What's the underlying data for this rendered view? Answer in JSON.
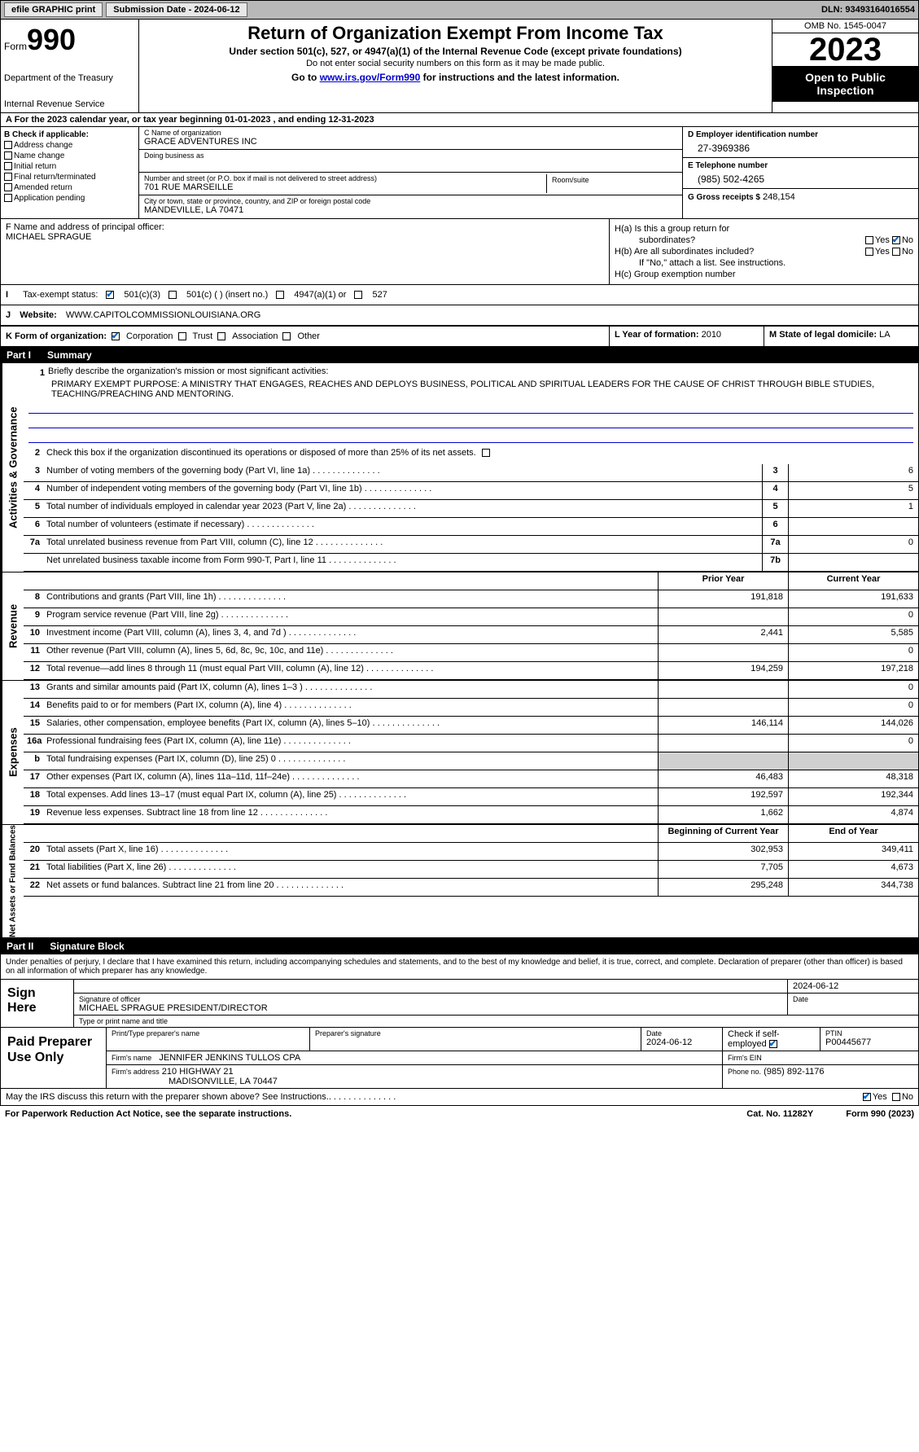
{
  "topbar": {
    "efile": "efile GRAPHIC print",
    "submission": "Submission Date - 2024-06-12",
    "dln": "DLN: 93493164016554"
  },
  "header": {
    "form": "Form",
    "num": "990",
    "dept": "Department of the Treasury",
    "irs": "Internal Revenue Service",
    "title": "Return of Organization Exempt From Income Tax",
    "subtitle": "Under section 501(c), 527, or 4947(a)(1) of the Internal Revenue Code (except private foundations)",
    "note1": "Do not enter social security numbers on this form as it may be made public.",
    "goto_prefix": "Go to ",
    "goto_link": "www.irs.gov/Form990",
    "goto_suffix": " for instructions and the latest information.",
    "omb": "OMB No. 1545-0047",
    "year": "2023",
    "inspect": "Open to Public Inspection"
  },
  "period": "A  For the 2023 calendar year, or tax year beginning 01-01-2023    , and ending 12-31-2023",
  "box_b": {
    "hdr": "B Check if applicable:",
    "items": [
      "Address change",
      "Name change",
      "Initial return",
      "Final return/terminated",
      "Amended return",
      "Application pending"
    ]
  },
  "box_c": {
    "name_lbl": "C Name of organization",
    "name": "GRACE ADVENTURES INC",
    "dba_lbl": "Doing business as",
    "street_lbl": "Number and street (or P.O. box if mail is not delivered to street address)",
    "street": "701 RUE MARSEILLE",
    "room_lbl": "Room/suite",
    "city_lbl": "City or town, state or province, country, and ZIP or foreign postal code",
    "city": "MANDEVILLE, LA  70471"
  },
  "box_d": {
    "ein_lbl": "D Employer identification number",
    "ein": "27-3969386",
    "tel_lbl": "E Telephone number",
    "tel": "(985) 502-4265",
    "gross_lbl": "G Gross receipts $",
    "gross": "248,154"
  },
  "box_f": {
    "lbl": "F  Name and address of principal officer:",
    "name": "MICHAEL SPRAGUE"
  },
  "box_h": {
    "a": "H(a)  Is this a group return for",
    "a2": "subordinates?",
    "b": "H(b)  Are all subordinates included?",
    "b2": "If \"No,\" attach a list. See instructions.",
    "c": "H(c)  Group exemption number"
  },
  "row_i": {
    "lbl": "Tax-exempt status:",
    "opts": [
      "501(c)(3)",
      "501(c) (  ) (insert no.)",
      "4947(a)(1) or",
      "527"
    ]
  },
  "row_j": {
    "lbl": "Website:",
    "val": "WWW.CAPITOLCOMMISSIONLOUISIANA.ORG"
  },
  "row_k": {
    "lbl": "K Form of organization:",
    "opts": [
      "Corporation",
      "Trust",
      "Association",
      "Other"
    ]
  },
  "row_l": {
    "lbl": "L Year of formation:",
    "val": "2010"
  },
  "row_m": {
    "lbl": "M State of legal domicile:",
    "val": "LA"
  },
  "part1": {
    "num": "Part I",
    "title": "Summary"
  },
  "summary": {
    "line1_lbl": "Briefly describe the organization's mission or most significant activities:",
    "line1_val": "PRIMARY EXEMPT PURPOSE: A MINISTRY THAT ENGAGES, REACHES AND DEPLOYS BUSINESS, POLITICAL AND SPIRITUAL LEADERS FOR THE CAUSE OF CHRIST THROUGH BIBLE STUDIES, TEACHING/PREACHING AND MENTORING.",
    "line2": "Check this box       if the organization discontinued its operations or disposed of more than 25% of its net assets.",
    "lines": [
      {
        "n": "3",
        "d": "Number of voting members of the governing body (Part VI, line 1a)",
        "c": "3",
        "v": "6"
      },
      {
        "n": "4",
        "d": "Number of independent voting members of the governing body (Part VI, line 1b)",
        "c": "4",
        "v": "5"
      },
      {
        "n": "5",
        "d": "Total number of individuals employed in calendar year 2023 (Part V, line 2a)",
        "c": "5",
        "v": "1"
      },
      {
        "n": "6",
        "d": "Total number of volunteers (estimate if necessary)",
        "c": "6",
        "v": ""
      },
      {
        "n": "7a",
        "d": "Total unrelated business revenue from Part VIII, column (C), line 12",
        "c": "7a",
        "v": "0"
      },
      {
        "n": "",
        "d": "Net unrelated business taxable income from Form 990-T, Part I, line 11",
        "c": "7b",
        "v": ""
      }
    ]
  },
  "revenue_hdr": {
    "prior": "Prior Year",
    "current": "Current Year"
  },
  "revenue": [
    {
      "n": "8",
      "d": "Contributions and grants (Part VIII, line 1h)",
      "p": "191,818",
      "c": "191,633"
    },
    {
      "n": "9",
      "d": "Program service revenue (Part VIII, line 2g)",
      "p": "",
      "c": "0"
    },
    {
      "n": "10",
      "d": "Investment income (Part VIII, column (A), lines 3, 4, and 7d )",
      "p": "2,441",
      "c": "5,585"
    },
    {
      "n": "11",
      "d": "Other revenue (Part VIII, column (A), lines 5, 6d, 8c, 9c, 10c, and 11e)",
      "p": "",
      "c": "0"
    },
    {
      "n": "12",
      "d": "Total revenue—add lines 8 through 11 (must equal Part VIII, column (A), line 12)",
      "p": "194,259",
      "c": "197,218"
    }
  ],
  "expenses": [
    {
      "n": "13",
      "d": "Grants and similar amounts paid (Part IX, column (A), lines 1–3 )",
      "p": "",
      "c": "0"
    },
    {
      "n": "14",
      "d": "Benefits paid to or for members (Part IX, column (A), line 4)",
      "p": "",
      "c": "0"
    },
    {
      "n": "15",
      "d": "Salaries, other compensation, employee benefits (Part IX, column (A), lines 5–10)",
      "p": "146,114",
      "c": "144,026"
    },
    {
      "n": "16a",
      "d": "Professional fundraising fees (Part IX, column (A), line 11e)",
      "p": "",
      "c": "0"
    },
    {
      "n": "b",
      "d": "Total fundraising expenses (Part IX, column (D), line 25) 0",
      "p": "grey",
      "c": "grey"
    },
    {
      "n": "17",
      "d": "Other expenses (Part IX, column (A), lines 11a–11d, 11f–24e)",
      "p": "46,483",
      "c": "48,318"
    },
    {
      "n": "18",
      "d": "Total expenses. Add lines 13–17 (must equal Part IX, column (A), line 25)",
      "p": "192,597",
      "c": "192,344"
    },
    {
      "n": "19",
      "d": "Revenue less expenses. Subtract line 18 from line 12",
      "p": "1,662",
      "c": "4,874"
    }
  ],
  "net_hdr": {
    "begin": "Beginning of Current Year",
    "end": "End of Year"
  },
  "net": [
    {
      "n": "20",
      "d": "Total assets (Part X, line 16)",
      "p": "302,953",
      "c": "349,411"
    },
    {
      "n": "21",
      "d": "Total liabilities (Part X, line 26)",
      "p": "7,705",
      "c": "4,673"
    },
    {
      "n": "22",
      "d": "Net assets or fund balances. Subtract line 21 from line 20",
      "p": "295,248",
      "c": "344,738"
    }
  ],
  "part2": {
    "num": "Part II",
    "title": "Signature Block"
  },
  "sig_text": "Under penalties of perjury, I declare that I have examined this return, including accompanying schedules and statements, and to the best of my knowledge and belief, it is true, correct, and complete. Declaration of preparer (other than officer) is based on all information of which preparer has any knowledge.",
  "sign": {
    "here": "Sign Here",
    "date": "2024-06-12",
    "sig_lbl": "Signature of officer",
    "officer": "MICHAEL SPRAGUE  PRESIDENT/DIRECTOR",
    "type_lbl": "Type or print name and title",
    "date_lbl": "Date"
  },
  "paid": {
    "title": "Paid Preparer Use Only",
    "print_lbl": "Print/Type preparer's name",
    "sig_lbl": "Preparer's signature",
    "date_lbl": "Date",
    "date": "2024-06-12",
    "check_lbl": "Check         if self-employed",
    "ptin_lbl": "PTIN",
    "ptin": "P00445677",
    "firm_lbl": "Firm's name",
    "firm": "JENNIFER JENKINS TULLOS CPA",
    "ein_lbl": "Firm's EIN",
    "addr_lbl": "Firm's address",
    "addr1": "210 HIGHWAY 21",
    "addr2": "MADISONVILLE, LA  70447",
    "phone_lbl": "Phone no.",
    "phone": "(985) 892-1176"
  },
  "discuss": "May the IRS discuss this return with the preparer shown above? See Instructions.",
  "footer": {
    "pra": "For Paperwork Reduction Act Notice, see the separate instructions.",
    "cat": "Cat. No. 11282Y",
    "form": "Form 990 (2023)"
  },
  "sidebars": {
    "ag": "Activities & Governance",
    "rev": "Revenue",
    "exp": "Expenses",
    "net": "Net Assets or Fund Balances"
  },
  "yn": {
    "yes": "Yes",
    "no": "No"
  }
}
